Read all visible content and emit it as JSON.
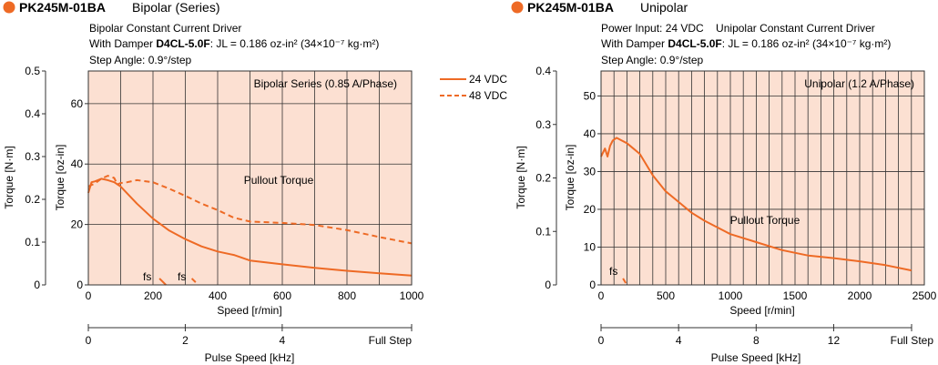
{
  "colors": {
    "accent": "#EE6A25",
    "plot_bg": "#FCE0D2",
    "grid": "#333333"
  },
  "chart_data": [
    {
      "type": "line",
      "model": "PK245M-01BA",
      "mode": "Bipolar (Series)",
      "notes": [
        "Bipolar Constant Current Driver",
        "Step Angle: 0.9°/step"
      ],
      "damper_prefix": "With Damper ",
      "damper_model": "D4CL-5.0F",
      "damper_rest": ": JL = 0.186 oz-in² (34×10⁻⁷ kg·m²)",
      "xlabel": "Speed [r/min]",
      "xlim": [
        0,
        1000
      ],
      "x_ticks": [
        0,
        200,
        400,
        600,
        800,
        1000
      ],
      "x_tick_labels": [
        "0",
        "200",
        "400",
        "600",
        "800",
        "1000"
      ],
      "ylabel_left": "Torque [N·m]",
      "ylim_left": [
        0,
        0.5
      ],
      "y_left_ticks": [
        0,
        0.1,
        0.2,
        0.3,
        0.4,
        0.5
      ],
      "y_left_tick_labels": [
        "0",
        "0.1",
        "0.2",
        "0.3",
        "0.4",
        "0.5"
      ],
      "ylabel_right": "Torque [oz-in]",
      "ylim_right": [
        0,
        70.8
      ],
      "y_right_ticks": [
        0,
        20,
        40,
        60
      ],
      "y_right_tick_labels": [
        "0",
        "20",
        "40",
        "60"
      ],
      "pulse_label": "Pulse Speed [kHz]",
      "pulse_ticks": [
        0,
        2,
        4
      ],
      "pulse_tick_labels": [
        "0",
        "2",
        "4"
      ],
      "pulse_end_label": "Full Step",
      "pulse_khz_per_rpm": 0.00667,
      "box_label": "Bipolar Series (0.85 A/Phase)",
      "annotation": "Pullout Torque",
      "fs_labels": [
        "fs",
        "fs"
      ],
      "legend": [
        {
          "name": "24 VDC",
          "style": "solid"
        },
        {
          "name": "48 VDC",
          "style": "dashed"
        }
      ],
      "series": [
        {
          "name": "24 VDC",
          "style": "solid",
          "x": [
            0,
            10,
            20,
            40,
            60,
            80,
            100,
            150,
            200,
            250,
            300,
            350,
            400,
            450,
            500,
            600,
            700,
            800,
            900,
            1000
          ],
          "y": [
            0.215,
            0.24,
            0.242,
            0.248,
            0.245,
            0.24,
            0.23,
            0.19,
            0.155,
            0.127,
            0.107,
            0.09,
            0.078,
            0.07,
            0.057,
            0.048,
            0.04,
            0.033,
            0.027,
            0.022
          ]
        },
        {
          "name": "48 VDC",
          "style": "dashed",
          "x": [
            0,
            20,
            40,
            60,
            80,
            90,
            100,
            120,
            150,
            200,
            250,
            300,
            350,
            400,
            450,
            500,
            600,
            700,
            800,
            900,
            1000
          ],
          "y": [
            0.23,
            0.237,
            0.248,
            0.255,
            0.25,
            0.235,
            0.238,
            0.24,
            0.245,
            0.24,
            0.225,
            0.208,
            0.19,
            0.175,
            0.157,
            0.148,
            0.145,
            0.14,
            0.128,
            0.112,
            0.097
          ]
        },
        {
          "name": "fs 24 VDC",
          "style": "solid",
          "x": [
            220,
            240
          ],
          "y": [
            0.015,
            0
          ]
        },
        {
          "name": "fs 48 VDC",
          "style": "dashed",
          "x": [
            320,
            340
          ],
          "y": [
            0.015,
            0
          ]
        }
      ]
    },
    {
      "type": "line",
      "model": "PK245M-01BA",
      "mode": "Unipolar",
      "notes": [
        "Power Input: 24 VDC    Unipolar Constant Current Driver",
        "Step Angle: 0.9°/step"
      ],
      "damper_prefix": "With Damper ",
      "damper_model": "D4CL-5.0F",
      "damper_rest": ": JL = 0.186 oz-in² (34×10⁻⁷ kg·m²)",
      "xlabel": "Speed [r/min]",
      "xlim": [
        0,
        2500
      ],
      "x_ticks": [
        0,
        500,
        1000,
        1500,
        2000,
        2500
      ],
      "x_tick_labels": [
        "0",
        "500",
        "1000",
        "1500",
        "2000",
        "2500"
      ],
      "ylabel_left": "Torque [N·m]",
      "ylim_left": [
        0,
        0.4
      ],
      "y_left_ticks": [
        0,
        0.1,
        0.2,
        0.3,
        0.4
      ],
      "y_left_tick_labels": [
        "0",
        "0.1",
        "0.2",
        "0.3",
        "0.4"
      ],
      "ylabel_right": "Torque [oz-in]",
      "ylim_right": [
        0,
        56.6
      ],
      "y_right_ticks": [
        0,
        10,
        20,
        30,
        40,
        50
      ],
      "y_right_tick_labels": [
        "0",
        "10",
        "20",
        "30",
        "40",
        "50"
      ],
      "pulse_label": "Pulse Speed [kHz]",
      "pulse_ticks": [
        0,
        4,
        8,
        12
      ],
      "pulse_tick_labels": [
        "0",
        "4",
        "8",
        "12"
      ],
      "pulse_end_label": "Full Step",
      "pulse_khz_per_rpm": 0.00667,
      "box_label": "Unipolar (1.2 A/Phase)",
      "annotation": "Pullout Torque",
      "fs_labels": [
        "fs"
      ],
      "legend": [],
      "series": [
        {
          "name": "24 VDC",
          "style": "solid",
          "x": [
            0,
            30,
            50,
            70,
            90,
            120,
            160,
            200,
            250,
            300,
            400,
            500,
            600,
            700,
            800,
            1000,
            1200,
            1400,
            1600,
            1800,
            2000,
            2200,
            2400
          ],
          "y": [
            0.24,
            0.255,
            0.24,
            0.26,
            0.27,
            0.275,
            0.27,
            0.265,
            0.255,
            0.245,
            0.205,
            0.175,
            0.155,
            0.135,
            0.12,
            0.095,
            0.08,
            0.065,
            0.055,
            0.05,
            0.044,
            0.037,
            0.027
          ]
        },
        {
          "name": "fs 24 VDC",
          "style": "dashed",
          "x": [
            170,
            200
          ],
          "y": [
            0.012,
            0
          ]
        }
      ]
    }
  ]
}
